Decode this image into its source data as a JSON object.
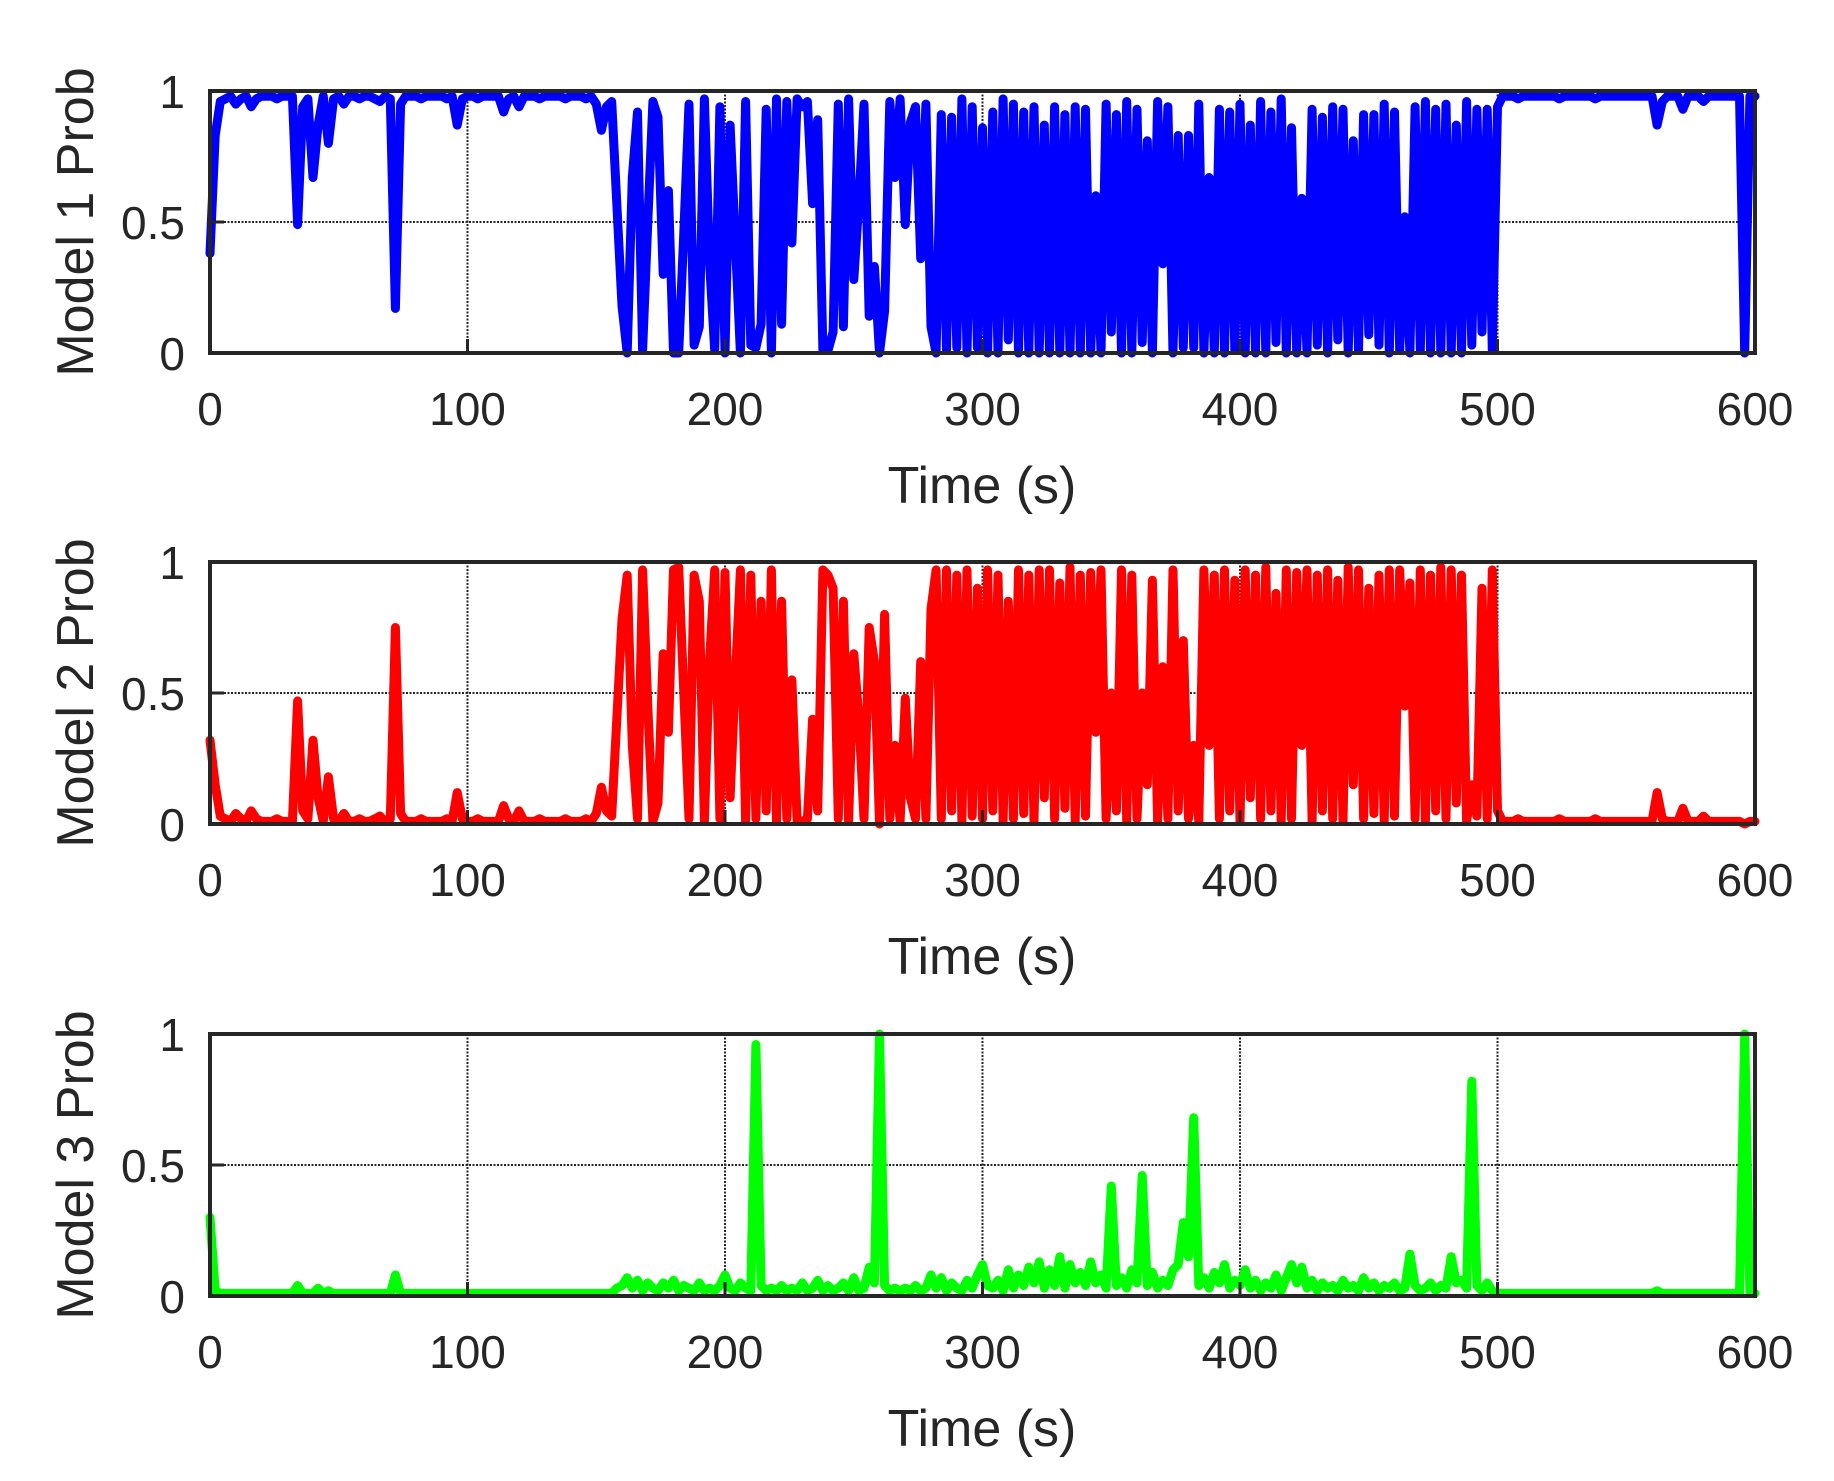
{
  "figure": {
    "subplots": [
      {
        "ylabel": "Model 1 Prob",
        "xlabel": "Time (s)",
        "color": "#0000ff"
      },
      {
        "ylabel": "Model 2 Prob",
        "xlabel": "Time (s)",
        "color": "#ff0000"
      },
      {
        "ylabel": "Model 3 Prob",
        "xlabel": "Time (s)",
        "color": "#00ff00"
      }
    ],
    "xticks": [
      "0",
      "100",
      "200",
      "300",
      "400",
      "500",
      "600"
    ],
    "yticks": [
      "0",
      "0.5",
      "1"
    ]
  },
  "chart_data": [
    {
      "type": "line",
      "title": "",
      "xlabel": "Time (s)",
      "ylabel": "Model 1 Prob",
      "xlim": [
        0,
        600
      ],
      "ylim": [
        0,
        1
      ],
      "grid": true,
      "color": "#0000ff",
      "series_ref": "model1"
    },
    {
      "type": "line",
      "title": "",
      "xlabel": "Time (s)",
      "ylabel": "Model 2 Prob",
      "xlim": [
        0,
        600
      ],
      "ylim": [
        0,
        1
      ],
      "grid": true,
      "color": "#ff0000",
      "series_ref": "model2"
    },
    {
      "type": "line",
      "title": "",
      "xlabel": "Time (s)",
      "ylabel": "Model 3 Prob",
      "xlim": [
        0,
        600
      ],
      "ylim": [
        0,
        1
      ],
      "grid": true,
      "color": "#00ff00",
      "series_ref": "model3"
    }
  ],
  "series_data": {
    "x_start": 0,
    "x_step": 2,
    "x_end": 600,
    "model1": [
      0.38,
      0.83,
      0.96,
      0.97,
      0.98,
      0.95,
      0.97,
      0.98,
      0.94,
      0.97,
      0.98,
      0.98,
      0.98,
      0.97,
      0.98,
      0.98,
      0.98,
      0.49,
      0.94,
      0.97,
      0.67,
      0.87,
      0.98,
      0.8,
      0.97,
      0.98,
      0.95,
      0.98,
      0.98,
      0.97,
      0.98,
      0.98,
      0.97,
      0.96,
      0.98,
      0.97,
      0.17,
      0.95,
      0.98,
      0.98,
      0.98,
      0.97,
      0.98,
      0.98,
      0.98,
      0.98,
      0.97,
      0.98,
      0.87,
      0.97,
      0.98,
      0.98,
      0.97,
      0.98,
      0.98,
      0.98,
      0.98,
      0.92,
      0.97,
      0.98,
      0.94,
      0.98,
      0.98,
      0.98,
      0.97,
      0.98,
      0.98,
      0.98,
      0.98,
      0.97,
      0.98,
      0.98,
      0.98,
      0.97,
      0.98,
      0.95,
      0.85,
      0.94,
      0.96,
      0.57,
      0.18,
      0.0,
      0.67,
      0.92,
      0.01,
      0.5,
      0.96,
      0.9,
      0.3,
      0.62,
      0.0,
      0.0,
      0.46,
      0.95,
      0.03,
      0.1,
      0.97,
      0.35,
      0.01,
      0.94,
      0.0,
      0.87,
      0.43,
      0.0,
      0.96,
      0.03,
      0.02,
      0.11,
      0.93,
      0.0,
      0.97,
      0.11,
      0.96,
      0.42,
      0.97,
      0.94,
      0.96,
      0.57,
      0.89,
      0.01,
      0.01,
      0.08,
      0.95,
      0.1,
      0.97,
      0.28,
      0.58,
      0.95,
      0.14,
      0.33,
      0.0,
      0.16,
      0.96,
      0.67,
      0.97,
      0.49,
      0.88,
      0.94,
      0.36,
      0.95,
      0.1,
      0.0,
      0.91,
      0.01,
      0.9,
      0.02,
      0.97,
      0.0,
      0.94,
      0.02,
      0.86,
      0.0,
      0.92,
      0.0,
      0.97,
      0.05,
      0.95,
      0.0,
      0.92,
      0.0,
      0.94,
      0.0,
      0.87,
      0.0,
      0.94,
      0.0,
      0.91,
      0.0,
      0.94,
      0.0,
      0.93,
      0.0,
      0.6,
      0.0,
      0.95,
      0.08,
      0.91,
      0.0,
      0.96,
      0.0,
      0.93,
      0.04,
      0.81,
      0.0,
      0.96,
      0.34,
      0.94,
      0.0,
      0.83,
      0.02,
      0.83,
      0.02,
      0.95,
      0.0,
      0.67,
      0.0,
      0.93,
      0.0,
      0.92,
      0.01,
      0.95,
      0.0,
      0.87,
      0.0,
      0.96,
      0.0,
      0.92,
      0.04,
      0.97,
      0.0,
      0.86,
      0.0,
      0.59,
      0.0,
      0.93,
      0.03,
      0.9,
      0.0,
      0.94,
      0.05,
      0.93,
      0.0,
      0.81,
      0.01,
      0.91,
      0.07,
      0.91,
      0.03,
      0.95,
      0.0,
      0.92,
      0.01,
      0.52,
      0.0,
      0.94,
      0.01,
      0.96,
      0.0,
      0.93,
      0.0,
      0.95,
      0.0,
      0.87,
      0.0,
      0.96,
      0.03,
      0.93,
      0.08,
      0.93,
      0.01,
      0.94,
      0.98,
      0.98,
      0.98,
      0.97,
      0.98,
      0.98,
      0.98,
      0.98,
      0.98,
      0.98,
      0.98,
      0.97,
      0.98,
      0.98,
      0.98,
      0.98,
      0.98,
      0.98,
      0.97,
      0.98,
      0.98,
      0.98,
      0.98,
      0.98,
      0.98,
      0.98,
      0.98,
      0.98,
      0.98,
      0.98,
      0.87,
      0.96,
      0.98,
      0.98,
      0.98,
      0.93,
      0.98,
      0.98,
      0.98,
      0.96,
      0.98,
      0.98,
      0.98,
      0.98,
      0.98,
      0.98,
      0.98,
      0.0,
      0.98,
      0.98
    ],
    "model2": [
      0.32,
      0.15,
      0.03,
      0.02,
      0.01,
      0.04,
      0.02,
      0.01,
      0.05,
      0.02,
      0.01,
      0.01,
      0.01,
      0.02,
      0.01,
      0.01,
      0.01,
      0.47,
      0.05,
      0.02,
      0.32,
      0.1,
      0.01,
      0.18,
      0.02,
      0.01,
      0.04,
      0.01,
      0.01,
      0.02,
      0.01,
      0.01,
      0.02,
      0.03,
      0.01,
      0.02,
      0.75,
      0.04,
      0.01,
      0.01,
      0.01,
      0.02,
      0.01,
      0.01,
      0.01,
      0.01,
      0.02,
      0.01,
      0.12,
      0.02,
      0.01,
      0.01,
      0.02,
      0.01,
      0.01,
      0.01,
      0.01,
      0.07,
      0.02,
      0.01,
      0.05,
      0.01,
      0.01,
      0.01,
      0.02,
      0.01,
      0.01,
      0.01,
      0.01,
      0.02,
      0.01,
      0.01,
      0.01,
      0.02,
      0.01,
      0.04,
      0.14,
      0.05,
      0.03,
      0.4,
      0.78,
      0.95,
      0.3,
      0.02,
      0.97,
      0.45,
      0.01,
      0.08,
      0.65,
      0.35,
      0.97,
      0.98,
      0.5,
      0.02,
      0.95,
      0.85,
      0.01,
      0.62,
      0.97,
      0.02,
      0.96,
      0.1,
      0.55,
      0.97,
      0.01,
      0.95,
      0.02,
      0.85,
      0.05,
      0.97,
      0.01,
      0.85,
      0.02,
      0.55,
      0.01,
      0.01,
      0.02,
      0.4,
      0.05,
      0.97,
      0.95,
      0.9,
      0.02,
      0.85,
      0.01,
      0.65,
      0.4,
      0.02,
      0.75,
      0.62,
      0.0,
      0.8,
      0.02,
      0.3,
      0.01,
      0.48,
      0.1,
      0.02,
      0.62,
      0.02,
      0.82,
      0.97,
      0.02,
      0.97,
      0.05,
      0.95,
      0.01,
      0.97,
      0.03,
      0.9,
      0.02,
      0.97,
      0.05,
      0.95,
      0.01,
      0.85,
      0.02,
      0.97,
      0.04,
      0.95,
      0.01,
      0.97,
      0.1,
      0.97,
      0.02,
      0.92,
      0.06,
      0.98,
      0.01,
      0.95,
      0.03,
      0.96,
      0.35,
      0.97,
      0.02,
      0.5,
      0.05,
      0.97,
      0.01,
      0.95,
      0.02,
      0.5,
      0.15,
      0.93,
      0.01,
      0.6,
      0.02,
      0.97,
      0.05,
      0.7,
      0.02,
      0.3,
      0.01,
      0.97,
      0.3,
      0.95,
      0.02,
      0.97,
      0.05,
      0.93,
      0.01,
      0.97,
      0.1,
      0.95,
      0.02,
      0.98,
      0.05,
      0.88,
      0.01,
      0.97,
      0.02,
      0.96,
      0.3,
      0.97,
      0.01,
      0.95,
      0.05,
      0.97,
      0.02,
      0.93,
      0.01,
      0.98,
      0.15,
      0.97,
      0.02,
      0.9,
      0.04,
      0.95,
      0.01,
      0.97,
      0.03,
      0.97,
      0.45,
      0.92,
      0.02,
      0.97,
      0.01,
      0.95,
      0.05,
      0.98,
      0.02,
      0.97,
      0.08,
      0.95,
      0.01,
      0.15,
      0.03,
      0.9,
      0.02,
      0.97,
      0.05,
      0.01,
      0.01,
      0.01,
      0.02,
      0.01,
      0.01,
      0.01,
      0.01,
      0.01,
      0.01,
      0.01,
      0.02,
      0.01,
      0.01,
      0.01,
      0.01,
      0.01,
      0.01,
      0.02,
      0.01,
      0.01,
      0.01,
      0.01,
      0.01,
      0.01,
      0.01,
      0.01,
      0.01,
      0.01,
      0.01,
      0.12,
      0.02,
      0.01,
      0.01,
      0.01,
      0.06,
      0.01,
      0.01,
      0.01,
      0.03,
      0.01,
      0.01,
      0.01,
      0.01,
      0.01,
      0.01,
      0.01,
      0.0,
      0.01,
      0.01
    ],
    "model3": [
      0.3,
      0.02,
      0.01,
      0.01,
      0.01,
      0.01,
      0.01,
      0.01,
      0.01,
      0.01,
      0.01,
      0.01,
      0.01,
      0.01,
      0.01,
      0.01,
      0.01,
      0.04,
      0.01,
      0.01,
      0.01,
      0.03,
      0.01,
      0.02,
      0.01,
      0.01,
      0.01,
      0.01,
      0.01,
      0.01,
      0.01,
      0.01,
      0.01,
      0.01,
      0.01,
      0.01,
      0.08,
      0.01,
      0.01,
      0.01,
      0.01,
      0.01,
      0.01,
      0.01,
      0.01,
      0.01,
      0.01,
      0.01,
      0.01,
      0.01,
      0.01,
      0.01,
      0.01,
      0.01,
      0.01,
      0.01,
      0.01,
      0.01,
      0.01,
      0.01,
      0.01,
      0.01,
      0.01,
      0.01,
      0.01,
      0.01,
      0.01,
      0.01,
      0.01,
      0.01,
      0.01,
      0.01,
      0.01,
      0.01,
      0.01,
      0.01,
      0.01,
      0.01,
      0.01,
      0.03,
      0.04,
      0.07,
      0.03,
      0.06,
      0.02,
      0.05,
      0.03,
      0.02,
      0.05,
      0.03,
      0.06,
      0.02,
      0.04,
      0.03,
      0.02,
      0.05,
      0.02,
      0.03,
      0.02,
      0.04,
      0.08,
      0.03,
      0.02,
      0.05,
      0.03,
      0.02,
      0.96,
      0.04,
      0.02,
      0.03,
      0.02,
      0.04,
      0.02,
      0.03,
      0.02,
      0.05,
      0.02,
      0.03,
      0.06,
      0.02,
      0.04,
      0.02,
      0.03,
      0.05,
      0.02,
      0.07,
      0.02,
      0.03,
      0.11,
      0.05,
      1.0,
      0.04,
      0.02,
      0.03,
      0.02,
      0.03,
      0.02,
      0.04,
      0.02,
      0.03,
      0.08,
      0.03,
      0.07,
      0.02,
      0.05,
      0.03,
      0.02,
      0.06,
      0.03,
      0.08,
      0.12,
      0.04,
      0.03,
      0.06,
      0.02,
      0.1,
      0.03,
      0.08,
      0.04,
      0.11,
      0.05,
      0.13,
      0.03,
      0.1,
      0.04,
      0.15,
      0.03,
      0.12,
      0.05,
      0.09,
      0.04,
      0.13,
      0.05,
      0.08,
      0.03,
      0.42,
      0.04,
      0.07,
      0.03,
      0.1,
      0.05,
      0.46,
      0.04,
      0.09,
      0.03,
      0.06,
      0.04,
      0.1,
      0.12,
      0.28,
      0.15,
      0.68,
      0.04,
      0.07,
      0.03,
      0.09,
      0.05,
      0.12,
      0.03,
      0.06,
      0.04,
      0.1,
      0.03,
      0.06,
      0.02,
      0.05,
      0.03,
      0.08,
      0.02,
      0.07,
      0.12,
      0.05,
      0.11,
      0.03,
      0.06,
      0.02,
      0.05,
      0.03,
      0.04,
      0.02,
      0.06,
      0.03,
      0.04,
      0.02,
      0.07,
      0.03,
      0.05,
      0.02,
      0.04,
      0.03,
      0.05,
      0.02,
      0.03,
      0.16,
      0.04,
      0.02,
      0.03,
      0.05,
      0.02,
      0.04,
      0.03,
      0.15,
      0.05,
      0.06,
      0.03,
      0.82,
      0.04,
      0.02,
      0.05,
      0.02,
      0.01,
      0.01,
      0.01,
      0.01,
      0.01,
      0.01,
      0.01,
      0.01,
      0.01,
      0.01,
      0.01,
      0.01,
      0.01,
      0.01,
      0.01,
      0.01,
      0.01,
      0.01,
      0.01,
      0.01,
      0.01,
      0.01,
      0.01,
      0.01,
      0.01,
      0.01,
      0.01,
      0.01,
      0.01,
      0.01,
      0.01,
      0.02,
      0.01,
      0.01,
      0.01,
      0.01,
      0.01,
      0.01,
      0.01,
      0.01,
      0.01,
      0.01,
      0.01,
      0.01,
      0.01,
      0.01,
      0.01,
      0.01,
      1.0,
      0.01,
      0.01
    ]
  }
}
